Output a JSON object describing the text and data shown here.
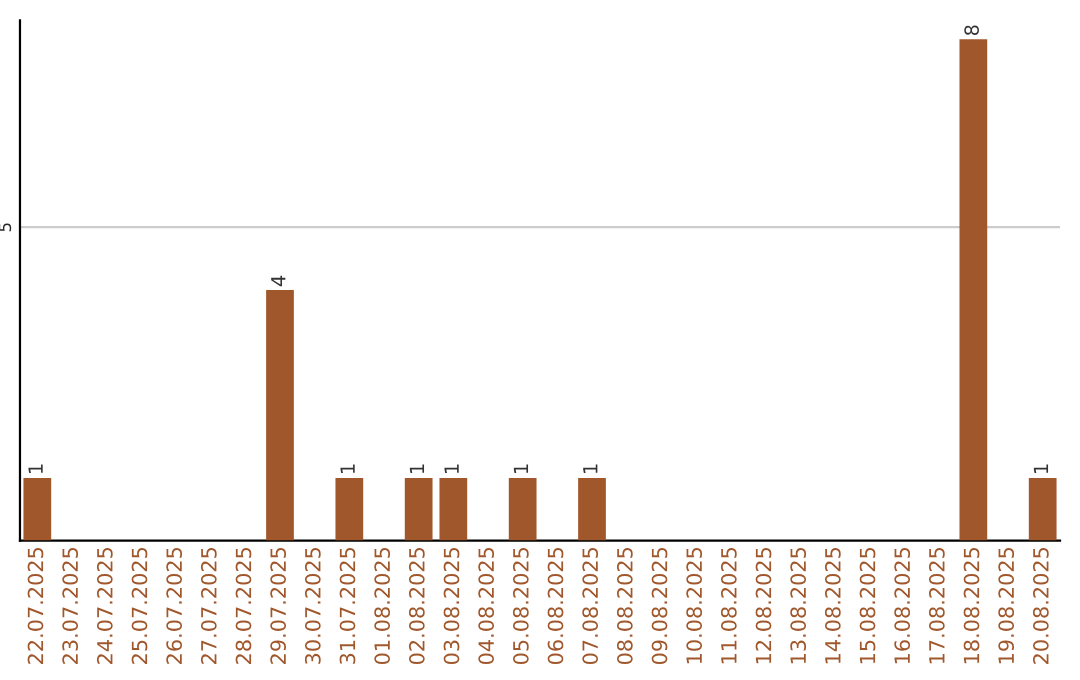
{
  "chart_data": {
    "type": "bar",
    "categories": [
      "22.07.2025",
      "23.07.2025",
      "24.07.2025",
      "25.07.2025",
      "26.07.2025",
      "27.07.2025",
      "28.07.2025",
      "29.07.2025",
      "30.07.2025",
      "31.07.2025",
      "01.08.2025",
      "02.08.2025",
      "03.08.2025",
      "04.08.2025",
      "05.08.2025",
      "06.08.2025",
      "07.08.2025",
      "08.08.2025",
      "09.08.2025",
      "10.08.2025",
      "11.08.2025",
      "12.08.2025",
      "13.08.2025",
      "14.08.2025",
      "15.08.2025",
      "16.08.2025",
      "17.08.2025",
      "18.08.2025",
      "19.08.2025",
      "20.08.2025"
    ],
    "values": [
      1,
      0,
      0,
      0,
      0,
      0,
      0,
      4,
      0,
      1,
      0,
      1,
      1,
      0,
      1,
      0,
      1,
      0,
      0,
      0,
      0,
      0,
      0,
      0,
      0,
      0,
      0,
      8,
      0,
      1
    ],
    "color": "#a0572b",
    "value_labels": [
      "1",
      null,
      null,
      null,
      null,
      null,
      null,
      "4",
      null,
      "1",
      null,
      "1",
      "1",
      null,
      "1",
      null,
      "1",
      null,
      null,
      null,
      null,
      null,
      null,
      null,
      null,
      null,
      null,
      "8",
      null,
      "1"
    ],
    "ylim": [
      0,
      8.3
    ],
    "yticks": [
      5
    ],
    "grid": "y"
  }
}
